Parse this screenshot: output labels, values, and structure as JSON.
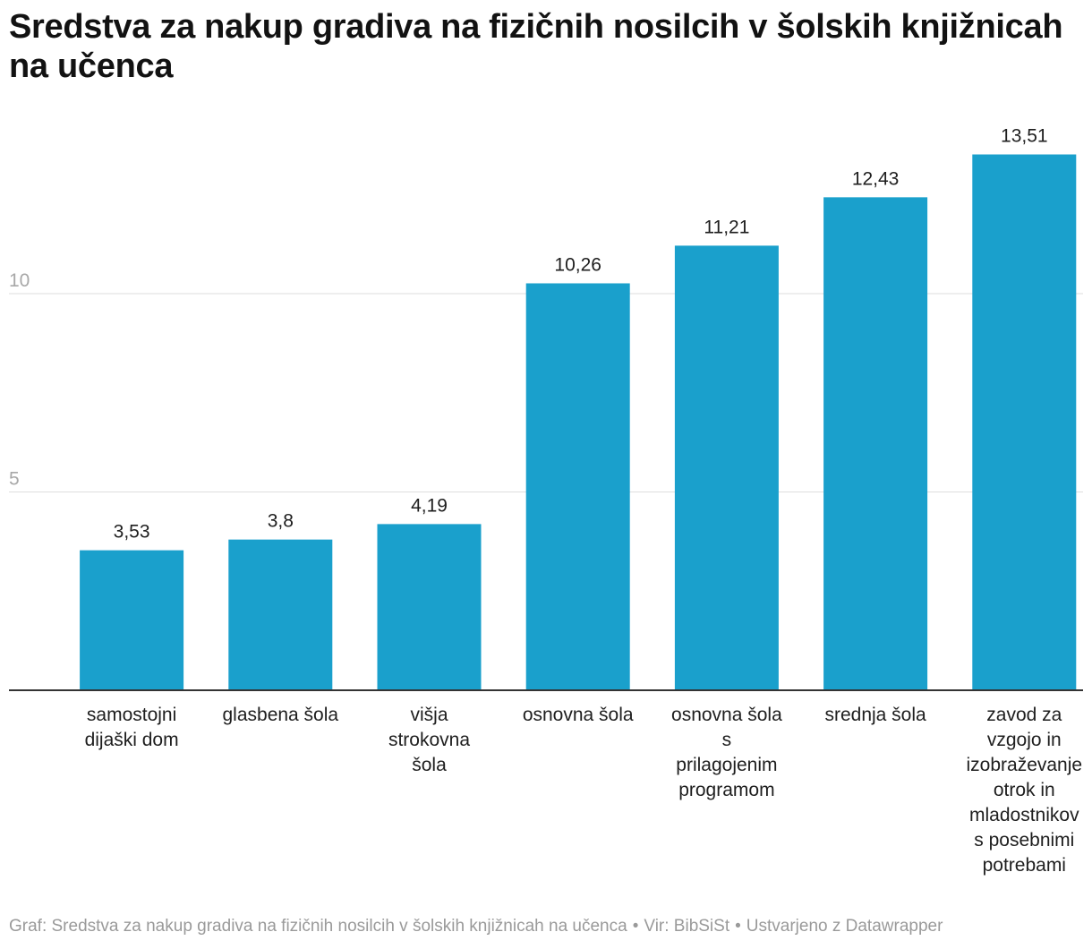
{
  "chart_data": {
    "type": "bar",
    "title": "Sredstva za nakup gradiva na fizičnih nosilcih v šolskih knjižnicah na učenca",
    "categories": [
      "samostojni dijaški dom",
      "glasbena šola",
      "višja strokovna šola",
      "osnovna šola",
      "osnovna šola s prilagojenim programom",
      "srednja šola",
      "zavod za vzgojo in izobraževanje otrok in mladostnikov s posebnimi potrebami"
    ],
    "category_label_lines": [
      [
        "samostojni",
        "dijaški dom"
      ],
      [
        "glasbena šola"
      ],
      [
        "višja",
        "strokovna",
        "šola"
      ],
      [
        "osnovna šola"
      ],
      [
        "osnovna šola",
        "s",
        "prilagojenim",
        "programom"
      ],
      [
        "srednja šola"
      ],
      [
        "zavod za",
        "vzgojo in",
        "izobraževanje",
        "otrok in",
        "mladostnikov",
        "s posebnimi",
        "potrebami"
      ]
    ],
    "values": [
      3.53,
      3.8,
      4.19,
      10.26,
      11.21,
      12.43,
      13.51
    ],
    "value_labels": [
      "3,53",
      "3,8",
      "4,19",
      "10,26",
      "11,21",
      "12,43",
      "13,51"
    ],
    "y_ticks": [
      5,
      10
    ],
    "y_tick_labels": [
      "5",
      "10"
    ],
    "ylim": [
      0,
      15
    ],
    "xlabel": "",
    "ylabel": "",
    "grid": true,
    "legend": "none",
    "bar_color": "#1aa0cc"
  },
  "footer": {
    "graph_text": "Graf: Sredstva za nakup gradiva na fizičnih nosilcih v šolskih knjižnicah na učenca",
    "source_text": "Vir: BibSiSt",
    "credit_text": "Ustvarjeno z Datawrapper",
    "separator": "•"
  }
}
